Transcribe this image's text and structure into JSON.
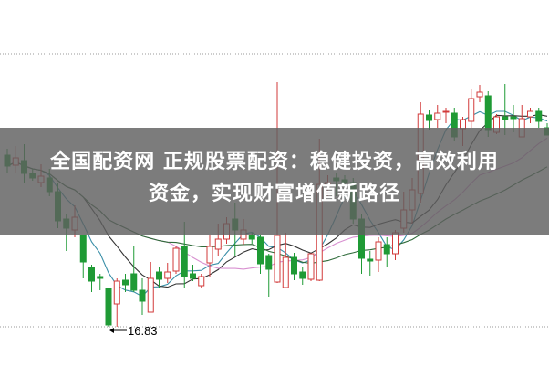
{
  "title": {
    "line1": "全国配资网 正规股票配资：稳健投资，高效利用",
    "line2": "资金，实现财富增值新路径"
  },
  "colors": {
    "up": "#d23a3a",
    "down": "#1f9a35",
    "ma5": "#3a8fa8",
    "ma10": "#333333",
    "ma20": "#d890d0",
    "ma30": "#2f6b3a",
    "banner": "#5f5f5f"
  },
  "chart_data": {
    "type": "candlestick",
    "low_label": "16.83",
    "ylim": [
      16.83,
      22.81
    ],
    "grid": "dotted horizontal lines at top and bottom",
    "moving_averages": [
      5,
      10,
      20,
      30
    ],
    "candles_ohlc": [
      [
        20.59,
        20.73,
        20.19,
        20.35
      ],
      [
        20.37,
        20.79,
        20.19,
        20.53
      ],
      [
        20.47,
        20.83,
        19.99,
        20.19
      ],
      [
        20.19,
        20.29,
        20.03,
        20.09
      ],
      [
        19.99,
        20.39,
        19.89,
        20.13
      ],
      [
        20.09,
        20.29,
        19.69,
        19.79
      ],
      [
        19.79,
        19.99,
        18.99,
        19.15
      ],
      [
        19.19,
        19.29,
        18.49,
        18.99
      ],
      [
        18.95,
        19.49,
        18.79,
        19.23
      ],
      [
        18.83,
        18.83,
        17.89,
        18.25
      ],
      [
        18.13,
        18.19,
        17.59,
        17.83
      ],
      [
        17.93,
        17.99,
        17.63,
        17.89
      ],
      [
        17.67,
        17.67,
        16.83,
        16.87
      ],
      [
        17.33,
        17.89,
        16.83,
        17.83
      ],
      [
        17.85,
        17.99,
        17.59,
        17.75
      ],
      [
        17.99,
        18.59,
        17.59,
        17.63
      ],
      [
        17.63,
        17.89,
        17.09,
        17.39
      ],
      [
        17.15,
        18.25,
        17.15,
        17.89
      ],
      [
        18.03,
        18.15,
        17.69,
        17.87
      ],
      [
        17.89,
        18.23,
        17.79,
        18.03
      ],
      [
        18.05,
        18.59,
        17.99,
        18.55
      ],
      [
        18.59,
        19.13,
        17.69,
        17.93
      ],
      [
        17.99,
        18.19,
        17.83,
        17.89
      ],
      [
        17.73,
        17.99,
        17.69,
        17.93
      ],
      [
        18.23,
        18.83,
        17.93,
        18.59
      ],
      [
        18.53,
        19.09,
        18.39,
        18.75
      ],
      [
        18.75,
        19.23,
        18.65,
        19.09
      ],
      [
        19.19,
        19.55,
        18.39,
        18.95
      ],
      [
        18.75,
        19.19,
        18.63,
        18.95
      ],
      [
        18.83,
        18.89,
        18.65,
        18.75
      ],
      [
        18.79,
        18.83,
        17.99,
        18.21
      ],
      [
        18.39,
        18.43,
        17.49,
        18.09
      ],
      [
        17.81,
        22.19,
        17.79,
        18.83
      ],
      [
        17.69,
        18.89,
        17.69,
        18.35
      ],
      [
        18.35,
        18.45,
        17.85,
        17.99
      ],
      [
        18.03,
        18.15,
        17.75,
        17.89
      ],
      [
        17.87,
        18.43,
        17.83,
        18.43
      ],
      [
        17.85,
        20.95,
        17.83,
        19.95
      ],
      [
        19.93,
        20.15,
        19.69,
        19.99
      ],
      [
        20.09,
        20.19,
        19.69,
        20.03
      ],
      [
        20.05,
        20.15,
        19.89,
        19.99
      ],
      [
        19.99,
        20.09,
        19.09,
        19.19
      ],
      [
        19.19,
        19.29,
        17.99,
        18.33
      ],
      [
        18.31,
        18.49,
        17.95,
        18.27
      ],
      [
        18.29,
        18.79,
        18.03,
        18.69
      ],
      [
        18.63,
        18.79,
        18.15,
        18.43
      ],
      [
        18.43,
        18.95,
        18.29,
        18.89
      ],
      [
        18.99,
        19.79,
        18.89,
        19.39
      ],
      [
        19.39,
        20.09,
        19.09,
        19.83
      ],
      [
        19.75,
        21.75,
        19.55,
        21.49
      ],
      [
        21.47,
        21.59,
        21.15,
        21.35
      ],
      [
        21.37,
        21.69,
        21.19,
        21.51
      ],
      [
        21.53,
        21.63,
        21.29,
        21.55
      ],
      [
        21.51,
        21.63,
        20.89,
        20.99
      ],
      [
        21.17,
        21.43,
        20.79,
        21.37
      ],
      [
        21.33,
        22.03,
        21.19,
        21.83
      ],
      [
        21.87,
        22.13,
        21.75,
        21.97
      ],
      [
        21.89,
        21.99,
        20.99,
        21.15
      ],
      [
        21.09,
        21.49,
        21.05,
        21.43
      ],
      [
        21.43,
        22.15,
        21.03,
        21.37
      ],
      [
        21.43,
        21.69,
        21.09,
        21.39
      ],
      [
        20.99,
        21.69,
        20.99,
        21.39
      ],
      [
        21.43,
        21.63,
        21.29,
        21.55
      ],
      [
        21.55,
        21.63,
        21.19,
        21.33
      ],
      [
        21.19,
        21.29,
        21.03,
        21.03
      ]
    ]
  }
}
